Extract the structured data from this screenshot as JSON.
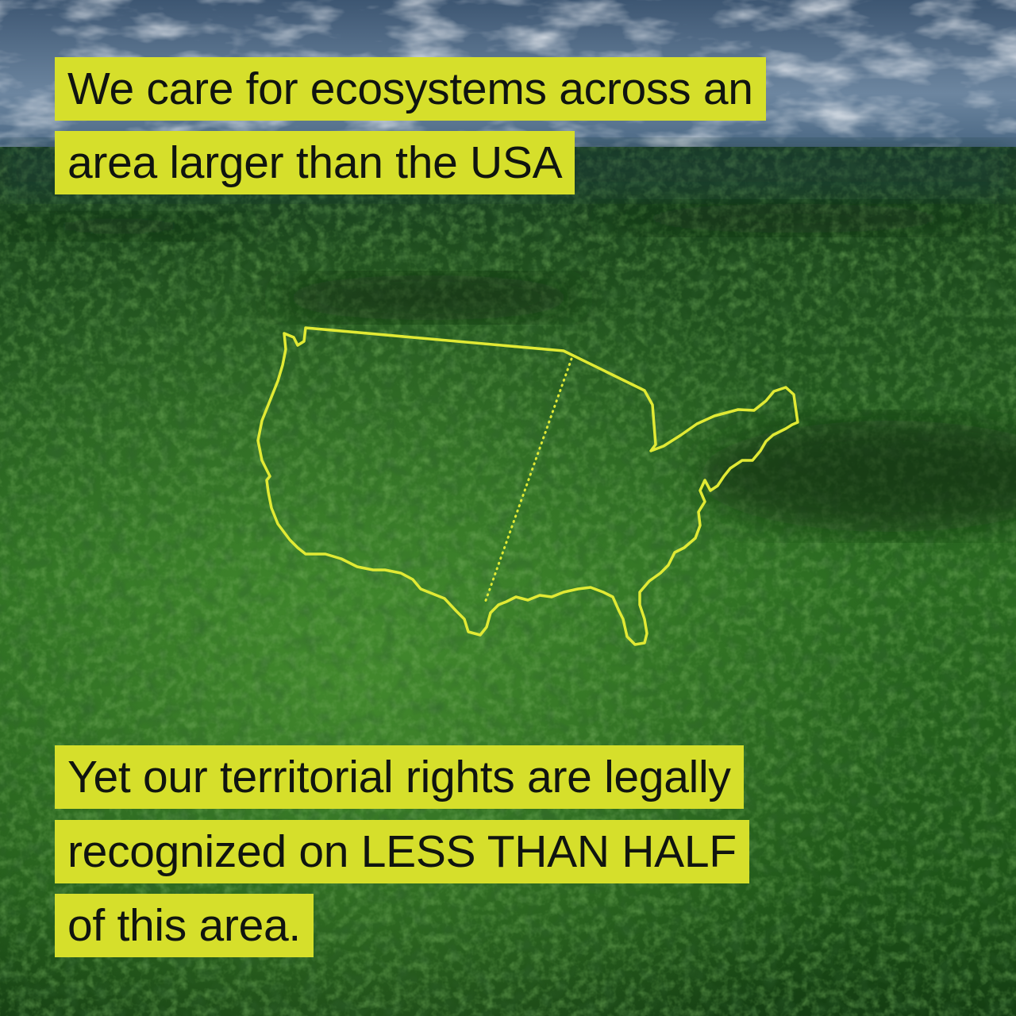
{
  "colors": {
    "highlight": "#d6df2b",
    "outline": "#e1ea34",
    "text": "#101410",
    "forest_dark": "#0f2c10",
    "forest_mid": "#1f5a1a",
    "forest_light": "#3f8a2a",
    "sky": "#5e7690",
    "cloud": "#c4cbd3"
  },
  "headline": {
    "line1": "We care for ecosystems across an",
    "line2": "area larger than the USA"
  },
  "statement": {
    "line1": "Yet our territorial rights are legally",
    "line2": "recognized on LESS THAN HALF",
    "line3": "of this area."
  },
  "map": {
    "shape": "usa-outline",
    "divider": "dotted-line"
  }
}
